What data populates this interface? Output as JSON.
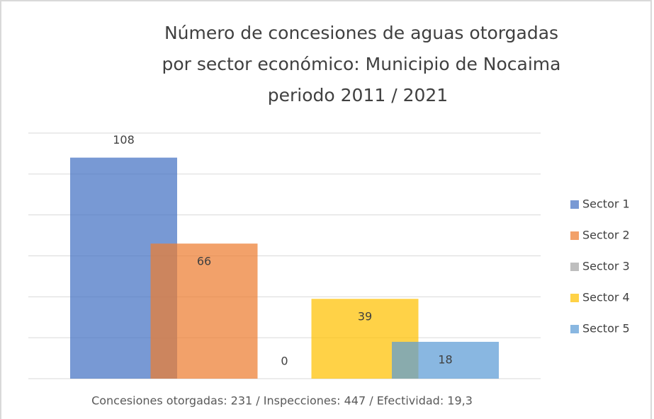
{
  "chart_data": {
    "type": "bar",
    "title": [
      "Número de concesiones de aguas otorgadas",
      "por sector económico: Municipio de Nocaima",
      "periodo 2011 / 2021"
    ],
    "footer": "Concesiones otorgadas: 231  /  Inspecciones:  447  /  Efectividad:  19,3",
    "series": [
      {
        "name": "Sector 1",
        "color": "#4472c4",
        "values": [
          108
        ]
      },
      {
        "name": "Sector 2",
        "color": "#ed7d31",
        "values": [
          66
        ]
      },
      {
        "name": "Sector 3",
        "color": "#a5a5a5",
        "values": [
          0
        ]
      },
      {
        "name": "Sector 4",
        "color": "#ffc000",
        "values": [
          39
        ]
      },
      {
        "name": "Sector 5",
        "color": "#5b9bd5",
        "values": [
          18
        ]
      }
    ],
    "ylim": [
      0,
      120
    ],
    "yticks": [
      0,
      20,
      40,
      60,
      80,
      100,
      120
    ],
    "grid": true,
    "legend": "right"
  }
}
